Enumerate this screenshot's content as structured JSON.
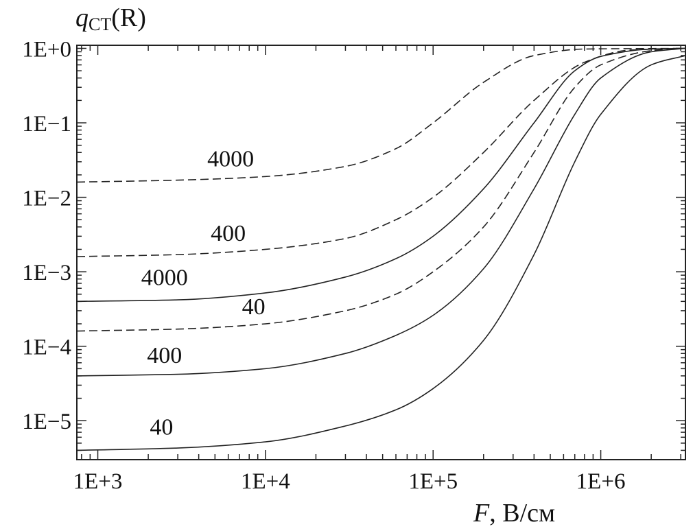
{
  "chart_data": {
    "type": "line",
    "ylabel": {
      "q": "q",
      "sub": "CT",
      "rest": "(R)"
    },
    "xlabel": {
      "f": "F",
      "unit": ", В/см"
    },
    "x_scale": "log",
    "y_scale": "log",
    "xlim": [
      750,
      3200000
    ],
    "ylim": [
      3e-06,
      1.1
    ],
    "x_ticks": [
      {
        "value": 1000,
        "label": "1E+3"
      },
      {
        "value": 10000,
        "label": "1E+4"
      },
      {
        "value": 100000,
        "label": "1E+5"
      },
      {
        "value": 1000000,
        "label": "1E+6"
      }
    ],
    "y_ticks": [
      {
        "value": 1,
        "label": "1E+0"
      },
      {
        "value": 0.1,
        "label": "1E−1"
      },
      {
        "value": 0.01,
        "label": "1E−2"
      },
      {
        "value": 0.001,
        "label": "1E−3"
      },
      {
        "value": 0.0001,
        "label": "1E−4"
      },
      {
        "value": 1e-05,
        "label": "1E−5"
      }
    ],
    "grid": false,
    "series": [
      {
        "label": "4000",
        "style": "dashed",
        "x": [
          750,
          3000,
          10000,
          30000,
          60000,
          100000,
          200000,
          400000,
          800000,
          3200000
        ],
        "y": [
          0.016,
          0.017,
          0.019,
          0.026,
          0.045,
          0.1,
          0.35,
          0.8,
          0.98,
          1.0
        ]
      },
      {
        "label": "400",
        "style": "dashed",
        "x": [
          750,
          3000,
          10000,
          30000,
          60000,
          100000,
          200000,
          400000,
          800000,
          1500000,
          3200000
        ],
        "y": [
          0.0016,
          0.0017,
          0.002,
          0.0028,
          0.005,
          0.01,
          0.04,
          0.2,
          0.65,
          0.95,
          1.0
        ]
      },
      {
        "label": "4000",
        "style": "solid",
        "x": [
          750,
          3000,
          10000,
          30000,
          60000,
          100000,
          200000,
          400000,
          700000,
          1000000,
          2000000,
          3200000
        ],
        "y": [
          0.0004,
          0.00042,
          0.00052,
          0.00085,
          0.0015,
          0.003,
          0.013,
          0.1,
          0.5,
          0.78,
          0.98,
          1.0
        ]
      },
      {
        "label": "40",
        "style": "dashed",
        "x": [
          750,
          3000,
          10000,
          30000,
          60000,
          100000,
          200000,
          400000,
          700000,
          1000000,
          2000000,
          3200000
        ],
        "y": [
          0.00016,
          0.00017,
          0.0002,
          0.0003,
          0.0005,
          0.001,
          0.004,
          0.04,
          0.3,
          0.6,
          0.93,
          1.0
        ]
      },
      {
        "label": "400",
        "style": "solid",
        "x": [
          750,
          3000,
          10000,
          30000,
          60000,
          100000,
          200000,
          400000,
          700000,
          1000000,
          2000000,
          3200000
        ],
        "y": [
          4e-05,
          4.2e-05,
          5e-05,
          8e-05,
          0.00014,
          0.00026,
          0.0011,
          0.013,
          0.13,
          0.4,
          0.9,
          1.0
        ]
      },
      {
        "label": "40",
        "style": "solid",
        "x": [
          750,
          3000,
          10000,
          30000,
          60000,
          100000,
          200000,
          400000,
          700000,
          1000000,
          2000000,
          3200000
        ],
        "y": [
          4e-06,
          4.3e-06,
          5.2e-06,
          8.5e-06,
          1.4e-05,
          2.7e-05,
          0.00012,
          0.0017,
          0.03,
          0.13,
          0.6,
          0.8
        ]
      }
    ]
  }
}
